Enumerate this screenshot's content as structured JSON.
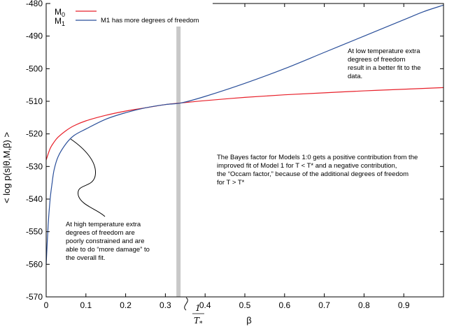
{
  "chart_data": {
    "type": "line",
    "title": "",
    "xlabel": "β",
    "ylabel": "< log p(s|θ,M,β) >",
    "xlim": [
      0,
      1
    ],
    "ylim": [
      -570,
      -480
    ],
    "xticks": [
      0,
      0.1,
      0.2,
      0.3,
      0.4,
      0.5,
      0.6,
      0.7,
      0.8,
      0.9
    ],
    "xtick_labels": [
      "0",
      "0.1",
      "0.2",
      "0.3",
      "0.4",
      "0.5",
      "0.6",
      "0.7",
      "0.8",
      "0.9"
    ],
    "yticks": [
      -480,
      -490,
      -500,
      -510,
      -520,
      -530,
      -540,
      -550,
      -560,
      -570
    ],
    "ytick_labels": [
      "-480",
      "-490",
      "-500",
      "-510",
      "-520",
      "-530",
      "-540",
      "-550",
      "-560",
      "-570"
    ],
    "grid": false,
    "legend_position": "top-left",
    "series": [
      {
        "name": "M0",
        "color": "#e8202a",
        "x": [
          0,
          0.01,
          0.02,
          0.03,
          0.05,
          0.07,
          0.1,
          0.15,
          0.2,
          0.25,
          0.3,
          0.34,
          0.4,
          0.5,
          0.6,
          0.7,
          0.8,
          0.9,
          1.0
        ],
        "y": [
          -528,
          -524.5,
          -522.5,
          -521,
          -519,
          -517.5,
          -516,
          -514.3,
          -513,
          -512,
          -511,
          -510.5,
          -509.8,
          -508.8,
          -508,
          -507.4,
          -506.8,
          -506.3,
          -505.8
        ]
      },
      {
        "name": "M1",
        "color": "#2a4f9a",
        "x": [
          0,
          0.005,
          0.01,
          0.015,
          0.02,
          0.03,
          0.05,
          0.07,
          0.1,
          0.15,
          0.2,
          0.25,
          0.3,
          0.34,
          0.4,
          0.5,
          0.6,
          0.7,
          0.8,
          0.9,
          0.95,
          1.0
        ],
        "y": [
          -560,
          -548,
          -540,
          -535,
          -531,
          -527,
          -523,
          -520.5,
          -518.5,
          -515.5,
          -513.5,
          -512,
          -511,
          -510.5,
          -508.5,
          -504.5,
          -500,
          -495,
          -490,
          -485,
          -482.5,
          -480.5
        ]
      }
    ],
    "vertical_marker": {
      "x": 0.333,
      "color": "#c8c8c8",
      "label_numerator": "1",
      "label_denominator": "T",
      "label_subscript": "*"
    },
    "legend": [
      {
        "symbol": "M",
        "subscript": "0",
        "color": "#e8202a"
      },
      {
        "symbol": "M",
        "subscript": "1",
        "color": "#2a4f9a",
        "note": "M1 has more degrees of freedom"
      }
    ],
    "annotations": [
      {
        "lines": [
          "At low temperature extra",
          "degrees of freedom",
          "result in a better fit to the",
          "data."
        ]
      },
      {
        "lines": [
          "The Bayes factor for Models 1:0 gets a positive contribution from the",
          "improved fit of Model 1 for T <  T* and a negative contribution,",
          "the “Occam factor,” because of the additional degrees of freedom",
          "for T > T*"
        ]
      },
      {
        "lines": [
          "At high temperature extra",
          "degrees of freedom are",
          "poorly constrained and are",
          "able to do “more damage” to",
          "the overall fit."
        ]
      }
    ]
  }
}
